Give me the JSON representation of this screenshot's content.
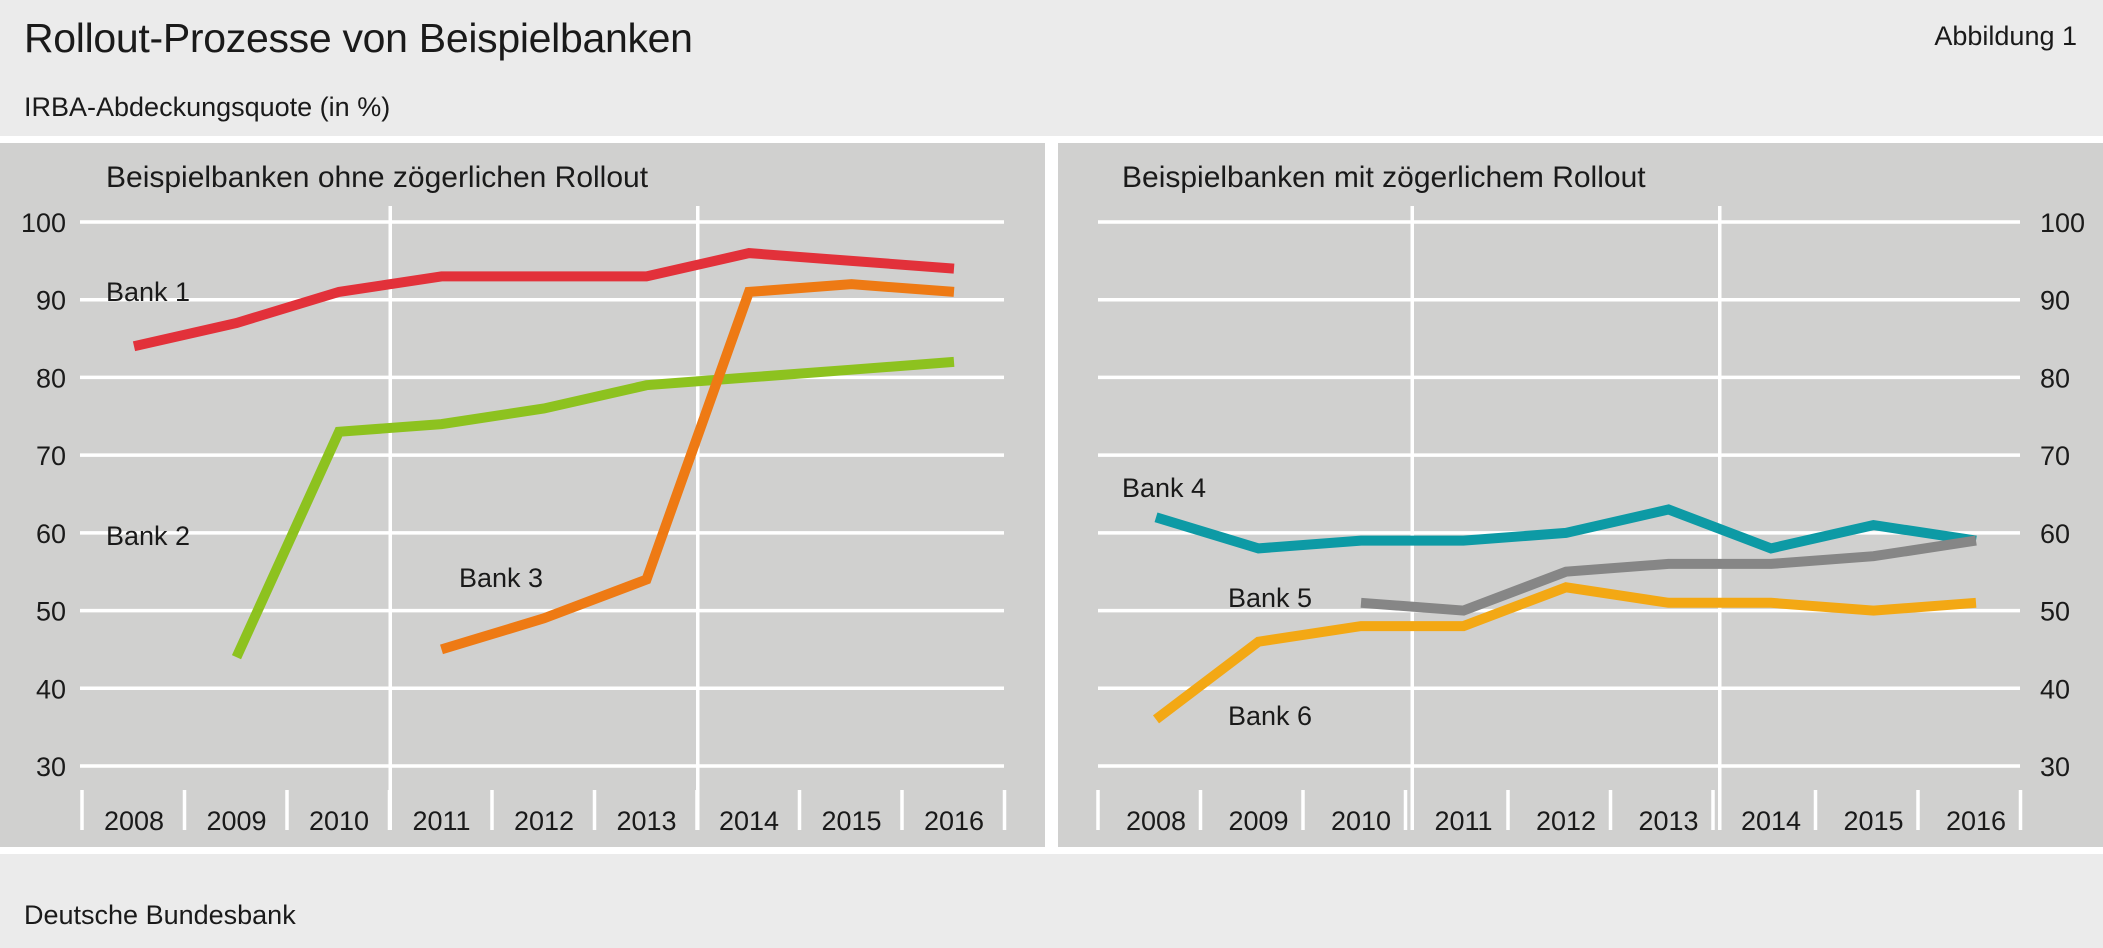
{
  "header": {
    "title": "Rollout-Prozesse von Beispielbanken",
    "figure_label": "Abbildung 1",
    "subtitle": "IRBA-Abdeckungsquote (in %)"
  },
  "footer": {
    "source": "Deutsche Bundesbank"
  },
  "colors": {
    "page_background": "#ebebeb",
    "panel_background": "#d0d0cf",
    "grid": "#ffffff",
    "bank1": "#e2313a",
    "bank2": "#8dc21f",
    "bank3": "#ee7a14",
    "bank4": "#0d9aa5",
    "bank5": "#868686",
    "bank6": "#f3a814"
  },
  "chart_data": [
    {
      "type": "line",
      "title": "Beispielbanken ohne zögerlichen Rollout",
      "x": [
        "2008",
        "2009",
        "2010",
        "2011",
        "2012",
        "2013",
        "2014",
        "2015",
        "2016"
      ],
      "ylim": [
        30,
        100
      ],
      "yticks": [
        30,
        40,
        50,
        60,
        70,
        80,
        90,
        100
      ],
      "y_axis_side": "left",
      "grid": true,
      "series": [
        {
          "name": "Bank 1",
          "color": "#e2313a",
          "values": [
            84,
            87,
            91,
            93,
            93,
            93,
            96,
            95,
            94
          ]
        },
        {
          "name": "Bank 2",
          "color": "#8dc21f",
          "values": [
            null,
            44,
            73,
            74,
            76,
            79,
            80,
            81,
            82
          ]
        },
        {
          "name": "Bank 3",
          "color": "#ee7a14",
          "values": [
            null,
            null,
            null,
            45,
            49,
            54,
            91,
            92,
            91
          ]
        }
      ]
    },
    {
      "type": "line",
      "title": "Beispielbanken mit zögerlichem Rollout",
      "x": [
        "2008",
        "2009",
        "2010",
        "2011",
        "2012",
        "2013",
        "2014",
        "2015",
        "2016"
      ],
      "ylim": [
        30,
        100
      ],
      "yticks": [
        30,
        40,
        50,
        60,
        70,
        80,
        90,
        100
      ],
      "y_axis_side": "right",
      "grid": true,
      "series": [
        {
          "name": "Bank 4",
          "color": "#0d9aa5",
          "values": [
            62,
            58,
            59,
            59,
            60,
            63,
            58,
            61,
            59
          ]
        },
        {
          "name": "Bank 5",
          "color": "#868686",
          "values": [
            null,
            null,
            51,
            50,
            55,
            56,
            56,
            57,
            59
          ]
        },
        {
          "name": "Bank 6",
          "color": "#f3a814",
          "values": [
            36,
            46,
            48,
            48,
            53,
            51,
            51,
            50,
            51
          ]
        }
      ]
    }
  ]
}
